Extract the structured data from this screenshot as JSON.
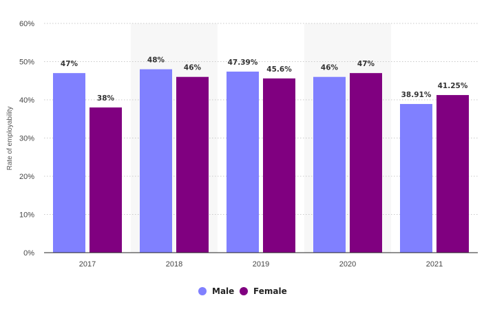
{
  "chart_data": {
    "type": "bar",
    "categories": [
      "2017",
      "2018",
      "2019",
      "2020",
      "2021"
    ],
    "series": [
      {
        "name": "Male",
        "color": "#8080ff",
        "values": [
          47,
          48,
          47.39,
          46,
          38.91
        ],
        "labels": [
          "47%",
          "48%",
          "47.39%",
          "46%",
          "38.91%"
        ]
      },
      {
        "name": "Female",
        "color": "#800080",
        "values": [
          38,
          46,
          45.6,
          47,
          41.25
        ],
        "labels": [
          "38%",
          "46%",
          "45.6%",
          "47%",
          "41.25%"
        ]
      }
    ],
    "ylabel": "Rate of employability",
    "ylim": [
      0,
      60
    ],
    "yticks": [
      0,
      10,
      20,
      30,
      40,
      50,
      60
    ],
    "ytick_labels": [
      "0%",
      "10%",
      "20%",
      "30%",
      "40%",
      "50%",
      "60%"
    ],
    "grid": true,
    "legend": "bottom-center"
  }
}
